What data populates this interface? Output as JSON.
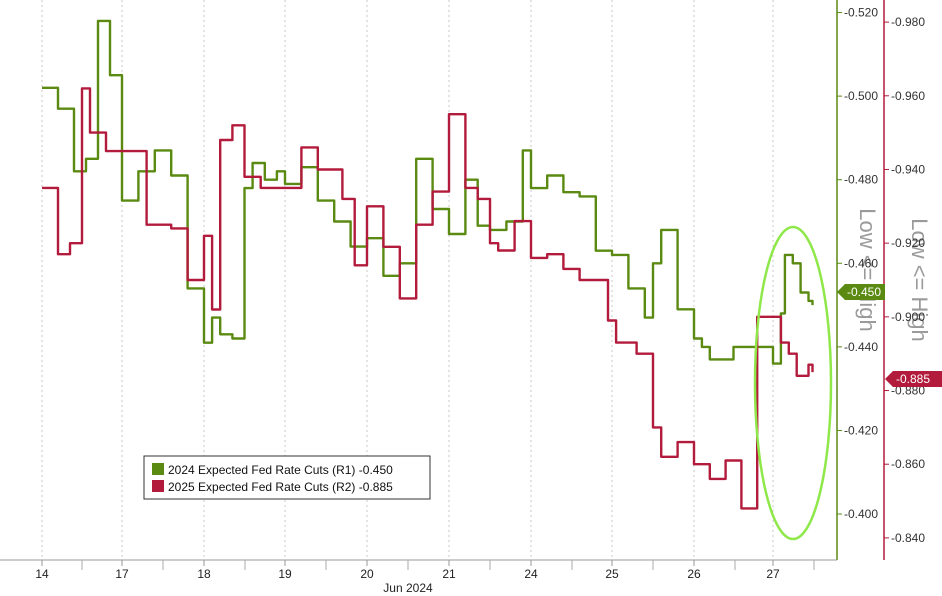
{
  "chart_data": {
    "type": "line",
    "x_label": "Jun 2024",
    "x_ticks": [
      "14",
      "17",
      "18",
      "19",
      "20",
      "21",
      "24",
      "25",
      "26",
      "27"
    ],
    "axes": {
      "r1": {
        "ticks": [
          "-0.520",
          "-0.500",
          "-0.480",
          "-0.460",
          "-0.440",
          "-0.420",
          "-0.400"
        ],
        "range": [
          -0.389,
          -0.523
        ],
        "label": "Low <= High",
        "position": "inner-right"
      },
      "r2": {
        "ticks": [
          "-0.980",
          "-0.960",
          "-0.940",
          "-0.920",
          "-0.900",
          "-0.880",
          "-0.860",
          "-0.840"
        ],
        "range": [
          -0.834,
          -0.986
        ],
        "label": "Low <= High",
        "position": "outer-right"
      }
    },
    "legend": {
      "placement": "bottom-left"
    },
    "grid": "vertical-dashed",
    "series": [
      {
        "name": "2024 Expected Fed Rate Cuts (R1)",
        "last": "-0.450",
        "axis": "r1",
        "color": "#5b8a12",
        "x": [
          0,
          0.2,
          0.4,
          0.55,
          0.7,
          0.85,
          1.0,
          1.2,
          1.4,
          1.6,
          1.8,
          2.0,
          2.1,
          2.2,
          2.35,
          2.5,
          2.6,
          2.75,
          2.9,
          3.0,
          3.2,
          3.4,
          3.6,
          3.8,
          4.0,
          4.2,
          4.4,
          4.6,
          4.8,
          5.0,
          5.2,
          5.35,
          5.5,
          5.7,
          5.9,
          6.0,
          6.2,
          6.4,
          6.6,
          6.8,
          7.0,
          7.2,
          7.4,
          7.5,
          7.6,
          7.8,
          8.0,
          8.1,
          8.2,
          8.3,
          8.5,
          8.7,
          8.85,
          9.0,
          9.1,
          9.15,
          9.25,
          9.35,
          9.45,
          9.5
        ],
        "y": [
          -0.502,
          -0.497,
          -0.482,
          -0.485,
          -0.518,
          -0.505,
          -0.475,
          -0.482,
          -0.487,
          -0.481,
          -0.454,
          -0.441,
          -0.447,
          -0.443,
          -0.442,
          -0.478,
          -0.484,
          -0.48,
          -0.482,
          -0.479,
          -0.483,
          -0.475,
          -0.47,
          -0.464,
          -0.466,
          -0.457,
          -0.46,
          -0.485,
          -0.473,
          -0.467,
          -0.48,
          -0.469,
          -0.468,
          -0.47,
          -0.487,
          -0.478,
          -0.481,
          -0.477,
          -0.476,
          -0.463,
          -0.462,
          -0.454,
          -0.447,
          -0.46,
          -0.468,
          -0.449,
          -0.442,
          -0.44,
          -0.437,
          -0.437,
          -0.44,
          -0.44,
          -0.44,
          -0.436,
          -0.448,
          -0.462,
          -0.46,
          -0.453,
          -0.451,
          -0.45
        ]
      },
      {
        "name": "2025 Expected Fed Rate Cuts (R2)",
        "last": "-0.885",
        "axis": "r2",
        "color": "#b31b3c",
        "x": [
          0,
          0.2,
          0.35,
          0.5,
          0.6,
          0.8,
          1.0,
          1.3,
          1.6,
          1.8,
          2.0,
          2.1,
          2.2,
          2.35,
          2.5,
          2.7,
          3.0,
          3.2,
          3.4,
          3.5,
          3.7,
          3.85,
          4.0,
          4.2,
          4.4,
          4.6,
          4.8,
          5.0,
          5.2,
          5.35,
          5.5,
          5.6,
          5.8,
          6.0,
          6.2,
          6.4,
          6.6,
          6.8,
          6.95,
          7.05,
          7.3,
          7.5,
          7.6,
          7.8,
          8.0,
          8.2,
          8.4,
          8.6,
          8.8,
          9.1,
          9.2,
          9.3,
          9.45,
          9.5
        ],
        "y": [
          -0.935,
          -0.917,
          -0.92,
          -0.962,
          -0.95,
          -0.945,
          -0.945,
          -0.925,
          -0.924,
          -0.91,
          -0.922,
          -0.902,
          -0.948,
          -0.952,
          -0.938,
          -0.935,
          -0.935,
          -0.946,
          -0.94,
          -0.94,
          -0.932,
          -0.914,
          -0.93,
          -0.919,
          -0.905,
          -0.925,
          -0.934,
          -0.955,
          -0.935,
          -0.932,
          -0.92,
          -0.918,
          -0.926,
          -0.916,
          -0.917,
          -0.913,
          -0.91,
          -0.91,
          -0.899,
          -0.893,
          -0.89,
          -0.87,
          -0.862,
          -0.866,
          -0.86,
          -0.856,
          -0.861,
          -0.848,
          -0.9,
          -0.893,
          -0.89,
          -0.884,
          -0.887,
          -0.885
        ]
      }
    ]
  }
}
